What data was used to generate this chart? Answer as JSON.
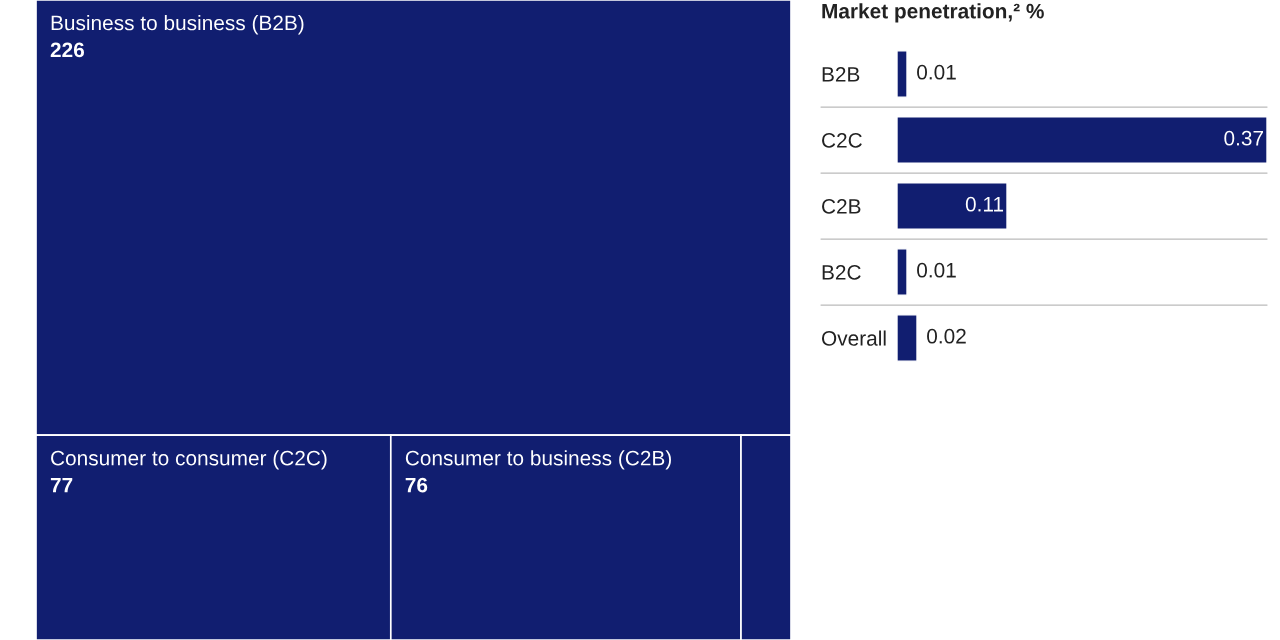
{
  "chart_data": [
    {
      "type": "other",
      "categories": [
        "Business to business (B2B)",
        "Consumer to consumer (C2C)",
        "Consumer to business (C2B)",
        null
      ],
      "values": [
        226,
        77,
        76,
        null
      ],
      "color": "#111e70",
      "data_labels": true
    },
    {
      "type": "bar",
      "orientation": "horizontal",
      "title": "Market penetration,² %",
      "categories": [
        "B2B",
        "C2C",
        "C2B",
        "B2C",
        "Overall"
      ],
      "values": [
        0.01,
        0.37,
        0.11,
        0.01,
        0.02
      ],
      "color": "#111e70",
      "xlim": [
        0,
        0.37
      ],
      "tick_labels": "y",
      "grid": "y",
      "data_labels": true
    }
  ]
}
